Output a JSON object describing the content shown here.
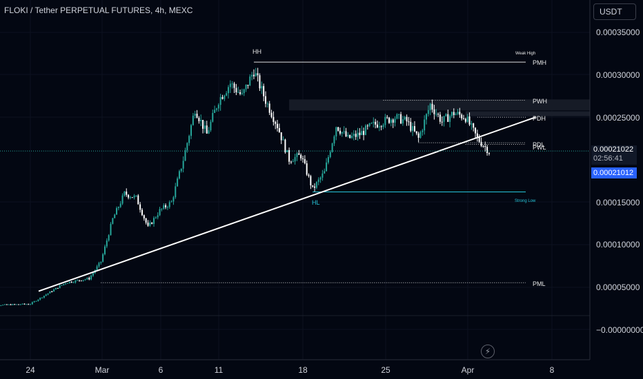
{
  "header": {
    "title": "FLOKI / Tether PERPETUAL FUTURES, 4h, MEXC",
    "currency_button": "USDT"
  },
  "price_scale": {
    "ticks": [
      "0.00035000",
      "0.00030000",
      "0.00025000",
      "0.00015000",
      "0.00010000",
      "0.00005000",
      "−0.00000000"
    ]
  },
  "time_scale": {
    "ticks": [
      "24",
      "Mar",
      "6",
      "11",
      "18",
      "25",
      "Apr",
      "8"
    ]
  },
  "last_price": {
    "price": "0.00021022",
    "countdown": "02:56:41",
    "bid_price": "0.00021012"
  },
  "annotations": {
    "hh": "HH",
    "hl": "HL",
    "weak_high": "Weak High",
    "strong_low": "Strong Low",
    "pmh": "PMH",
    "pwh": "PWH",
    "pdh": "PDH",
    "pdl": "PDL",
    "pwl": "PWL",
    "pml": "PML"
  },
  "icons": {
    "replay": "lightning-icon"
  },
  "colors": {
    "background": "#030712",
    "candle_up": "#26a69a",
    "candle_down": "#ffffff",
    "trendline": "#ffffff",
    "strong_low_line": "#26c6da",
    "last_price_line": "#26a69a",
    "bid_tag": "#2962ff"
  },
  "chart_data": {
    "type": "candlestick",
    "symbol": "FLOKI / Tether PERPETUAL FUTURES",
    "timeframe": "4h",
    "exchange": "MEXC",
    "x_tick_labels": [
      "24",
      "Mar",
      "6",
      "11",
      "18",
      "25",
      "Apr",
      "8"
    ],
    "y_tick_labels": [
      "0.00035000",
      "0.00030000",
      "0.00025000",
      "0.00015000",
      "0.00010000",
      "0.00005000",
      "−0.00000000"
    ],
    "ylim": [
      -2e-05,
      0.00038
    ],
    "close_path": [
      [
        "Feb 20",
        2.8e-05
      ],
      [
        "Feb 24",
        3e-05
      ],
      [
        "Feb 27",
        5.5e-05
      ],
      [
        "Feb 29",
        6e-05
      ],
      [
        "Mar 1",
        8e-05
      ],
      [
        "Mar 2",
        0.00013
      ],
      [
        "Mar 3",
        0.00016
      ],
      [
        "Mar 4",
        0.000155
      ],
      [
        "Mar 5",
        0.00012
      ],
      [
        "Mar 6",
        0.00014
      ],
      [
        "Mar 7",
        0.00015
      ],
      [
        "Mar 8",
        0.0002
      ],
      [
        "Mar 9",
        0.00026
      ],
      [
        "Mar 10",
        0.00023
      ],
      [
        "Mar 11",
        0.00027
      ],
      [
        "Mar 12",
        0.00029
      ],
      [
        "Mar 13",
        0.000275
      ],
      [
        "Mar 14",
        0.000305
      ],
      [
        "Mar 15",
        0.00027
      ],
      [
        "Mar 16",
        0.00024
      ],
      [
        "Mar 17",
        0.0002
      ],
      [
        "Mar 18",
        0.000205
      ],
      [
        "Mar 19",
        0.000165
      ],
      [
        "Mar 20",
        0.000185
      ],
      [
        "Mar 21",
        0.00024
      ],
      [
        "Mar 22",
        0.000225
      ],
      [
        "Mar 23",
        0.00023
      ],
      [
        "Mar 24",
        0.00024
      ],
      [
        "Mar 25",
        0.000245
      ],
      [
        "Mar 26",
        0.00025
      ],
      [
        "Mar 27",
        0.000245
      ],
      [
        "Mar 28",
        0.000225
      ],
      [
        "Mar 29",
        0.000265
      ],
      [
        "Mar 30",
        0.000245
      ],
      [
        "Mar 31",
        0.000255
      ],
      [
        "Apr 1",
        0.00025
      ],
      [
        "Apr 2",
        0.000225
      ],
      [
        "Apr 3",
        0.00021
      ]
    ],
    "levels": [
      {
        "label": "PMH",
        "value": 0.000315
      },
      {
        "label": "PWH",
        "value": 0.00027
      },
      {
        "label": "PDH",
        "value": 0.00025
      },
      {
        "label": "PDL",
        "value": 0.00022
      },
      {
        "label": "PWL",
        "value": 0.000218
      },
      {
        "label": "Strong Low",
        "value": 0.000162
      },
      {
        "label": "PML",
        "value": 5.5e-05
      }
    ],
    "trendline": {
      "from": [
        "Feb 24",
        4.5e-05
      ],
      "to": [
        "Apr 7",
        0.00025
      ]
    },
    "last_price": 0.00021022
  }
}
